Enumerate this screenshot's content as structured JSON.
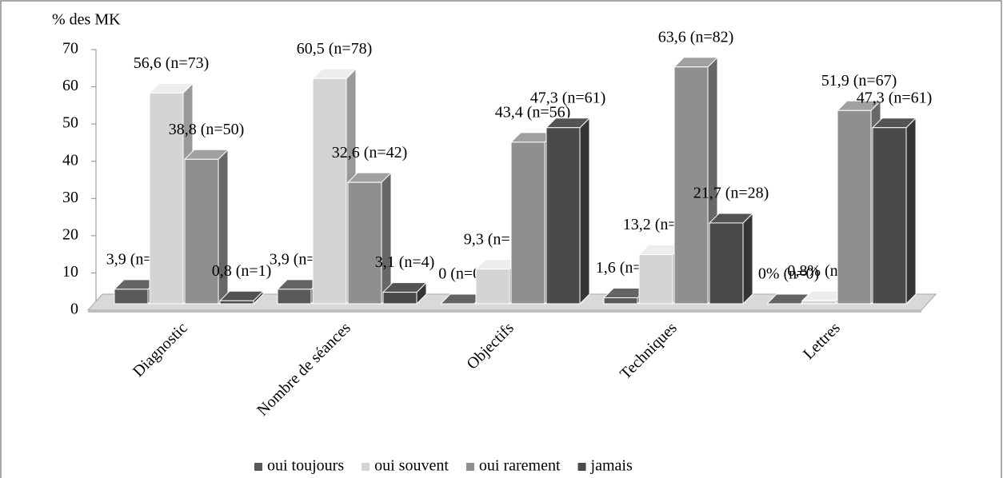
{
  "chart_data": {
    "type": "bar3d",
    "y_label": "% des MK",
    "categories": [
      "Diagnostic",
      "Nombre de séances",
      "Objectifs",
      "Techniques",
      "Lettres"
    ],
    "series": [
      {
        "name": "oui toujours",
        "color": "#595959",
        "values": [
          3.9,
          3.9,
          0,
          1.6,
          0
        ],
        "value_labels": [
          "3,9 (n=5)",
          "3,9 (n=5)",
          "0 (n=0)",
          "1,6 (n=2)",
          "0% (n=0)"
        ]
      },
      {
        "name": "oui souvent",
        "color": "#d4d4d4",
        "values": [
          56.6,
          60.5,
          9.3,
          13.2,
          0.8
        ],
        "value_labels": [
          "56,6 (n=73)",
          "60,5 (n=78)",
          "9,3 (n=12)",
          "13,2 (n=17)",
          "0,8% (n=1)"
        ]
      },
      {
        "name": "oui rarement",
        "color": "#8f8f8f",
        "values": [
          38.8,
          32.6,
          43.4,
          63.6,
          51.9
        ],
        "value_labels": [
          "38,8 (n=50)",
          "32,6 (n=42)",
          "43,4 (n=56)",
          "63,6 (n=82)",
          "51,9 (n=67)"
        ]
      },
      {
        "name": "jamais",
        "color": "#4a4a4a",
        "values": [
          0.8,
          3.1,
          47.3,
          21.7,
          47.3
        ],
        "value_labels": [
          "0,8 (n=1)",
          "3,1 (n=4)",
          "47,3 (n=61)",
          "21,7 (n=28)",
          "47,3 (n=61)"
        ]
      }
    ],
    "ylim": [
      0,
      70
    ],
    "yticks": [
      0,
      10,
      20,
      30,
      40,
      50,
      60,
      70
    ],
    "legend": "bottom"
  }
}
